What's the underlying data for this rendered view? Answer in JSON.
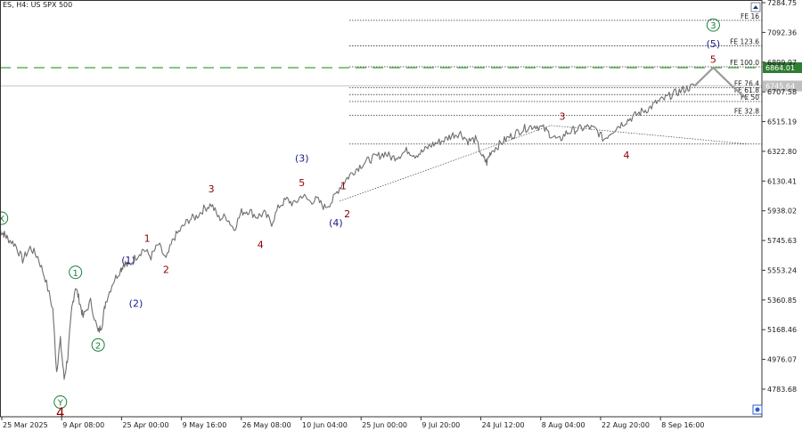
{
  "header": {
    "symbol": "ES, H4:  US SPX 500"
  },
  "chart_data": {
    "type": "line",
    "symbol": "ES",
    "timeframe": "H4",
    "y_ticks": [
      7284.75,
      7092.36,
      6899.97,
      6707.58,
      6515.19,
      6322.8,
      6130.41,
      5938.02,
      5745.63,
      5553.24,
      5360.85,
      5168.46,
      4976.07,
      4783.68
    ],
    "x_ticks": [
      "25 Mar 2025",
      "9 Apr 08:00",
      "25 Apr 00:00",
      "9 May 16:00",
      "26 May 08:00",
      "10 Jun 04:00",
      "25 Jun 00:00",
      "9 Jul 20:00",
      "24 Jul 12:00",
      "8 Aug 04:00",
      "22 Aug 20:00",
      "8 Sep 16:00"
    ],
    "ylim": [
      4620,
      7330
    ],
    "price_series": [
      [
        0,
        5810
      ],
      [
        0.5,
        5790
      ],
      [
        1,
        5760
      ],
      [
        2,
        5720
      ],
      [
        3,
        5620
      ],
      [
        4,
        5700
      ],
      [
        5,
        5640
      ],
      [
        6,
        5500
      ],
      [
        7,
        5300
      ],
      [
        7.5,
        4900
      ],
      [
        8,
        5100
      ],
      [
        8.5,
        4850
      ],
      [
        9,
        5000
      ],
      [
        9.5,
        5300
      ],
      [
        10,
        5450
      ],
      [
        10.5,
        5360
      ],
      [
        11,
        5250
      ],
      [
        12,
        5350
      ],
      [
        13,
        5150
      ],
      [
        13.5,
        5200
      ],
      [
        14,
        5350
      ],
      [
        15,
        5480
      ],
      [
        16,
        5560
      ],
      [
        16.5,
        5600
      ],
      [
        17,
        5580
      ],
      [
        18,
        5640
      ],
      [
        19,
        5690
      ],
      [
        20,
        5640
      ],
      [
        21,
        5720
      ],
      [
        22,
        5620
      ],
      [
        23,
        5760
      ],
      [
        24,
        5820
      ],
      [
        25,
        5880
      ],
      [
        26,
        5900
      ],
      [
        27,
        5950
      ],
      [
        28,
        5980
      ],
      [
        29,
        5890
      ],
      [
        30,
        5900
      ],
      [
        31,
        5820
      ],
      [
        32,
        5930
      ],
      [
        33,
        5940
      ],
      [
        34,
        5900
      ],
      [
        35,
        5920
      ],
      [
        36,
        5860
      ],
      [
        37,
        5970
      ],
      [
        38,
        6010
      ],
      [
        39,
        5980
      ],
      [
        40,
        6040
      ],
      [
        41,
        6000
      ],
      [
        42,
        6010
      ],
      [
        43,
        5960
      ],
      [
        44,
        6000
      ],
      [
        45,
        6090
      ],
      [
        46,
        6150
      ],
      [
        47,
        6200
      ],
      [
        48,
        6240
      ],
      [
        49,
        6270
      ],
      [
        50,
        6290
      ],
      [
        51,
        6310
      ],
      [
        52,
        6280
      ],
      [
        53,
        6300
      ],
      [
        54,
        6330
      ],
      [
        55,
        6300
      ],
      [
        56,
        6320
      ],
      [
        57,
        6360
      ],
      [
        58,
        6380
      ],
      [
        59,
        6400
      ],
      [
        60,
        6430
      ],
      [
        61,
        6440
      ],
      [
        62,
        6390
      ],
      [
        63,
        6400
      ],
      [
        64,
        6280
      ],
      [
        64.5,
        6250
      ],
      [
        65,
        6320
      ],
      [
        66,
        6360
      ],
      [
        67,
        6400
      ],
      [
        68,
        6430
      ],
      [
        69,
        6460
      ],
      [
        70,
        6480
      ],
      [
        71,
        6490
      ],
      [
        72,
        6470
      ],
      [
        73,
        6430
      ],
      [
        74,
        6390
      ],
      [
        75,
        6440
      ],
      [
        76,
        6460
      ],
      [
        77,
        6470
      ],
      [
        78,
        6480
      ],
      [
        79,
        6460
      ],
      [
        80,
        6400
      ],
      [
        81,
        6450
      ],
      [
        82,
        6490
      ],
      [
        83,
        6520
      ],
      [
        84,
        6550
      ],
      [
        85,
        6580
      ],
      [
        86,
        6600
      ],
      [
        87,
        6640
      ],
      [
        88,
        6660
      ],
      [
        89,
        6690
      ],
      [
        90,
        6710
      ],
      [
        91,
        6730
      ],
      [
        92,
        6745
      ]
    ],
    "projection": [
      [
        92,
        6745
      ],
      [
        94.5,
        6864
      ],
      [
        97,
        6745
      ],
      [
        99,
        6660
      ]
    ],
    "ref_lines": {
      "tp_price": "6864.01",
      "tp_value": 6864.01,
      "current_price": "6745.64",
      "current_value": 6745.64
    },
    "fe_levels": [
      {
        "label": "FE 16",
        "value": 7170
      },
      {
        "label": "FE 123.6",
        "value": 7005
      },
      {
        "label": "FE 100.0",
        "value": 6870
      },
      {
        "label": "FE 76.4",
        "value": 6735
      },
      {
        "label": "FE 61.8",
        "value": 6690
      },
      {
        "label": "FE 50",
        "value": 6645
      },
      {
        "label": "FE 32.8",
        "value": 6555
      },
      {
        "label": "",
        "value": 6370
      }
    ],
    "trend_lines": [
      {
        "from": [
          45,
          6000
        ],
        "to": [
          73,
          6490
        ]
      },
      {
        "from": [
          73,
          6490
        ],
        "to": [
          99,
          6370
        ]
      }
    ],
    "wave_labels": [
      {
        "text": "X",
        "x": 0.2,
        "y": 5890,
        "color": "#1a7f37",
        "circle": true,
        "size": 10
      },
      {
        "text": "Y",
        "x": 8,
        "y": 4700,
        "color": "#1a7f37",
        "circle": true,
        "size": 10
      },
      {
        "text": "4",
        "x": 8,
        "y": 4625,
        "color": "#8b0000",
        "circle": false,
        "size": 15
      },
      {
        "text": "1",
        "x": 10,
        "y": 5540,
        "color": "#1a7f37",
        "circle": true,
        "size": 10
      },
      {
        "text": "2",
        "x": 13,
        "y": 5070,
        "color": "#1a7f37",
        "circle": true,
        "size": 10
      },
      {
        "text": "(1)",
        "x": 17,
        "y": 5620,
        "color": "#1a1a8b",
        "circle": false,
        "size": 11
      },
      {
        "text": "(2)",
        "x": 18,
        "y": 5340,
        "color": "#1a1a8b",
        "circle": false,
        "size": 11
      },
      {
        "text": "1",
        "x": 19.5,
        "y": 5760,
        "color": "#8b0000",
        "circle": false,
        "size": 11
      },
      {
        "text": "2",
        "x": 22,
        "y": 5560,
        "color": "#8b0000",
        "circle": false,
        "size": 11
      },
      {
        "text": "3",
        "x": 28,
        "y": 6080,
        "color": "#8b0000",
        "circle": false,
        "size": 11
      },
      {
        "text": "4",
        "x": 34.5,
        "y": 5720,
        "color": "#8b0000",
        "circle": false,
        "size": 11
      },
      {
        "text": "(3)",
        "x": 40,
        "y": 6280,
        "color": "#1a1a8b",
        "circle": false,
        "size": 11
      },
      {
        "text": "5",
        "x": 40,
        "y": 6120,
        "color": "#8b0000",
        "circle": false,
        "size": 11
      },
      {
        "text": "(4)",
        "x": 44.5,
        "y": 5860,
        "color": "#1a1a8b",
        "circle": false,
        "size": 11
      },
      {
        "text": "1",
        "x": 45.5,
        "y": 6100,
        "color": "#8b0000",
        "circle": false,
        "size": 11
      },
      {
        "text": "2",
        "x": 46,
        "y": 5920,
        "color": "#8b0000",
        "circle": false,
        "size": 11
      },
      {
        "text": "3",
        "x": 74.5,
        "y": 6550,
        "color": "#8b0000",
        "circle": false,
        "size": 11
      },
      {
        "text": "4",
        "x": 83,
        "y": 6300,
        "color": "#8b0000",
        "circle": false,
        "size": 11
      },
      {
        "text": "5",
        "x": 94.5,
        "y": 6920,
        "color": "#8b0000",
        "circle": false,
        "size": 11
      },
      {
        "text": "(5)",
        "x": 94.5,
        "y": 7020,
        "color": "#1a1a8b",
        "circle": false,
        "size": 11
      },
      {
        "text": "3",
        "x": 94.5,
        "y": 7140,
        "color": "#1a7f37",
        "circle": true,
        "size": 10
      }
    ],
    "colors": {
      "price_line": "#6e6e6e",
      "tp_line": "#3aa53a",
      "tp_badge": "#2e7d32",
      "current_line": "#c8c8c8",
      "current_badge": "#c0c0c0",
      "fe_line": "#333333",
      "projection": "#9a9a9a",
      "grid": "#e8e8e8",
      "axis": "#333333"
    }
  }
}
